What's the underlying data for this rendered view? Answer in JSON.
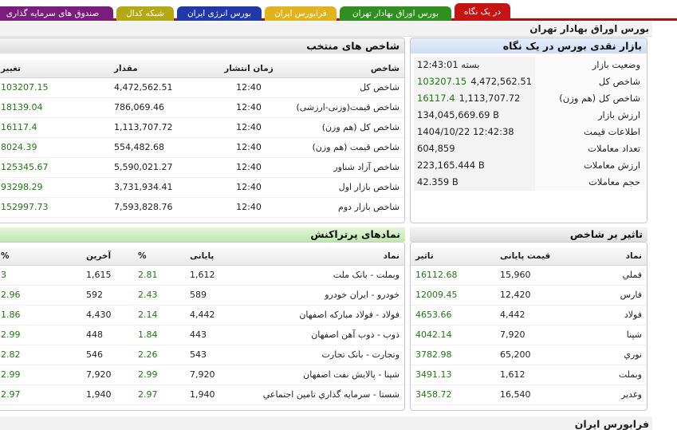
{
  "tabs": [
    {
      "label": "در یک نگاه",
      "color": "#c41414",
      "active": true
    },
    {
      "label": "بورس اوراق بهادار تهران",
      "color": "#2f8f1f",
      "active": false
    },
    {
      "label": "فرابورس ایران",
      "color": "#e1b41d",
      "active": false
    },
    {
      "label": "بورس انرژی ایران",
      "color": "#2138a8",
      "active": false
    },
    {
      "label": "شبکه کدال",
      "color": "#b4a815",
      "active": false
    },
    {
      "label": "صندوق های سرمایه گذاری",
      "color": "#7b1d7e",
      "active": false
    }
  ],
  "page_title": "بورس اوراق بهادار تهران",
  "market_summary": {
    "title": "بازار نقدی بورس در یک نگاه",
    "rows": [
      {
        "label": "وضعیت بازار",
        "value": "بسته 12:43:01",
        "extra": ""
      },
      {
        "label": "شاخص کل",
        "value": "4,472,562.51",
        "extra": "103207.15"
      },
      {
        "label": "شاخص کل (هم وزن)",
        "value": "1,113,707.72",
        "extra": "16117.4"
      },
      {
        "label": "ارزش بازار",
        "value": "134,045,669.69 B",
        "extra": ""
      },
      {
        "label": "اطلاعات قیمت",
        "value": "1404/10/22 12:42:38",
        "extra": ""
      },
      {
        "label": "تعداد معاملات",
        "value": "604,859",
        "extra": ""
      },
      {
        "label": "ارزش معاملات",
        "value": "223,165.444 B",
        "extra": ""
      },
      {
        "label": "حجم معاملات",
        "value": "42.359 B",
        "extra": ""
      }
    ]
  },
  "selected_indices": {
    "title": "شاخص های منتخب",
    "columns": [
      "شاخص",
      "زمان انتشار",
      "مقدار",
      "تغییر"
    ],
    "rows": [
      {
        "name": "شاخص کل",
        "time": "12:40",
        "value": "4,472,562.51",
        "change": "103207.15"
      },
      {
        "name": "شاخص قیمت(وزنی-ارزشی)",
        "time": "12:40",
        "value": "786,069.46",
        "change": "18139.04"
      },
      {
        "name": "شاخص کل (هم وزن)",
        "time": "12:40",
        "value": "1,113,707.72",
        "change": "16117.4"
      },
      {
        "name": "شاخص قیمت (هم وزن)",
        "time": "12:40",
        "value": "554,482.68",
        "change": "8024.39"
      },
      {
        "name": "شاخص آزاد شناور",
        "time": "12:40",
        "value": "5,590,021.27",
        "change": "125345.67"
      },
      {
        "name": "شاخص بازار اول",
        "time": "12:40",
        "value": "3,731,934.41",
        "change": "93298.29"
      },
      {
        "name": "شاخص بازار دوم",
        "time": "12:40",
        "value": "7,593,828.76",
        "change": "152997.73"
      }
    ]
  },
  "index_impact": {
    "title": "تاثیر بر شاخص",
    "columns": [
      "نماد",
      "قیمت پایانی",
      "تاثیر"
    ],
    "rows": [
      {
        "symbol": "فملي",
        "price": "15,960",
        "impact": "16112.68"
      },
      {
        "symbol": "فارس",
        "price": "12,420",
        "impact": "12009.45"
      },
      {
        "symbol": "فولاد",
        "price": "4,442",
        "impact": "4653.66"
      },
      {
        "symbol": "شپنا",
        "price": "7,920",
        "impact": "4042.14"
      },
      {
        "symbol": "نوري",
        "price": "65,200",
        "impact": "3782.98"
      },
      {
        "symbol": "وبملت",
        "price": "1,612",
        "impact": "3491.13"
      },
      {
        "symbol": "وغدير",
        "price": "16,540",
        "impact": "3458.72"
      }
    ]
  },
  "most_traded": {
    "title": "نمادهای پرتراکنش",
    "columns": [
      "نماد",
      "پایانی",
      "%",
      "آخرین",
      "%"
    ],
    "rows": [
      {
        "symbol": "وبملت - بانک ملت",
        "close": "1,612",
        "close_pct": "2.81",
        "last": "1,615",
        "last_pct": "3"
      },
      {
        "symbol": "خودرو - ایران خودرو",
        "close": "589",
        "close_pct": "2.43",
        "last": "592",
        "last_pct": "2.96"
      },
      {
        "symbol": "فولاد - فولاد مبارکه اصفهان",
        "close": "4,442",
        "close_pct": "2.14",
        "last": "4,430",
        "last_pct": "1.86"
      },
      {
        "symbol": "ذوب - ذوب آهن اصفهان",
        "close": "443",
        "close_pct": "1.84",
        "last": "448",
        "last_pct": "2.99"
      },
      {
        "symbol": "وتجارت - بانک تجارت",
        "close": "543",
        "close_pct": "2.26",
        "last": "546",
        "last_pct": "2.82"
      },
      {
        "symbol": "شپنا - پالایش نفت اصفهان",
        "close": "7,920",
        "close_pct": "2.99",
        "last": "7,920",
        "last_pct": "2.99"
      },
      {
        "symbol": "شستا - سرمایه گذاري تامين اجتماعي",
        "close": "1,940",
        "close_pct": "2.97",
        "last": "1,940",
        "last_pct": "2.97"
      }
    ]
  },
  "bottom_title": "فرابورس ایران"
}
